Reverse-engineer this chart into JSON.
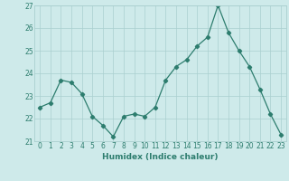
{
  "x": [
    0,
    1,
    2,
    3,
    4,
    5,
    6,
    7,
    8,
    9,
    10,
    11,
    12,
    13,
    14,
    15,
    16,
    17,
    18,
    19,
    20,
    21,
    22,
    23
  ],
  "y": [
    22.5,
    22.7,
    23.7,
    23.6,
    23.1,
    22.1,
    21.7,
    21.2,
    22.1,
    22.2,
    22.1,
    22.5,
    23.7,
    24.3,
    24.6,
    25.2,
    25.6,
    27.0,
    25.8,
    25.0,
    24.3,
    23.3,
    22.2,
    21.3
  ],
  "line_color": "#2d7d6e",
  "marker": "D",
  "marker_size": 2.2,
  "bg_color": "#ceeaea",
  "grid_color": "#aacfcf",
  "xlabel": "Humidex (Indice chaleur)",
  "ylim": [
    21,
    27
  ],
  "xlim_left": -0.5,
  "xlim_right": 23.5,
  "yticks": [
    21,
    22,
    23,
    24,
    25,
    26,
    27
  ],
  "xticks": [
    0,
    1,
    2,
    3,
    4,
    5,
    6,
    7,
    8,
    9,
    10,
    11,
    12,
    13,
    14,
    15,
    16,
    17,
    18,
    19,
    20,
    21,
    22,
    23
  ],
  "tick_color": "#2d7d6e",
  "label_color": "#2d7d6e",
  "spine_color": "#7aababc",
  "font_size": 5.5,
  "xlabel_font_size": 6.5,
  "line_width": 0.9
}
